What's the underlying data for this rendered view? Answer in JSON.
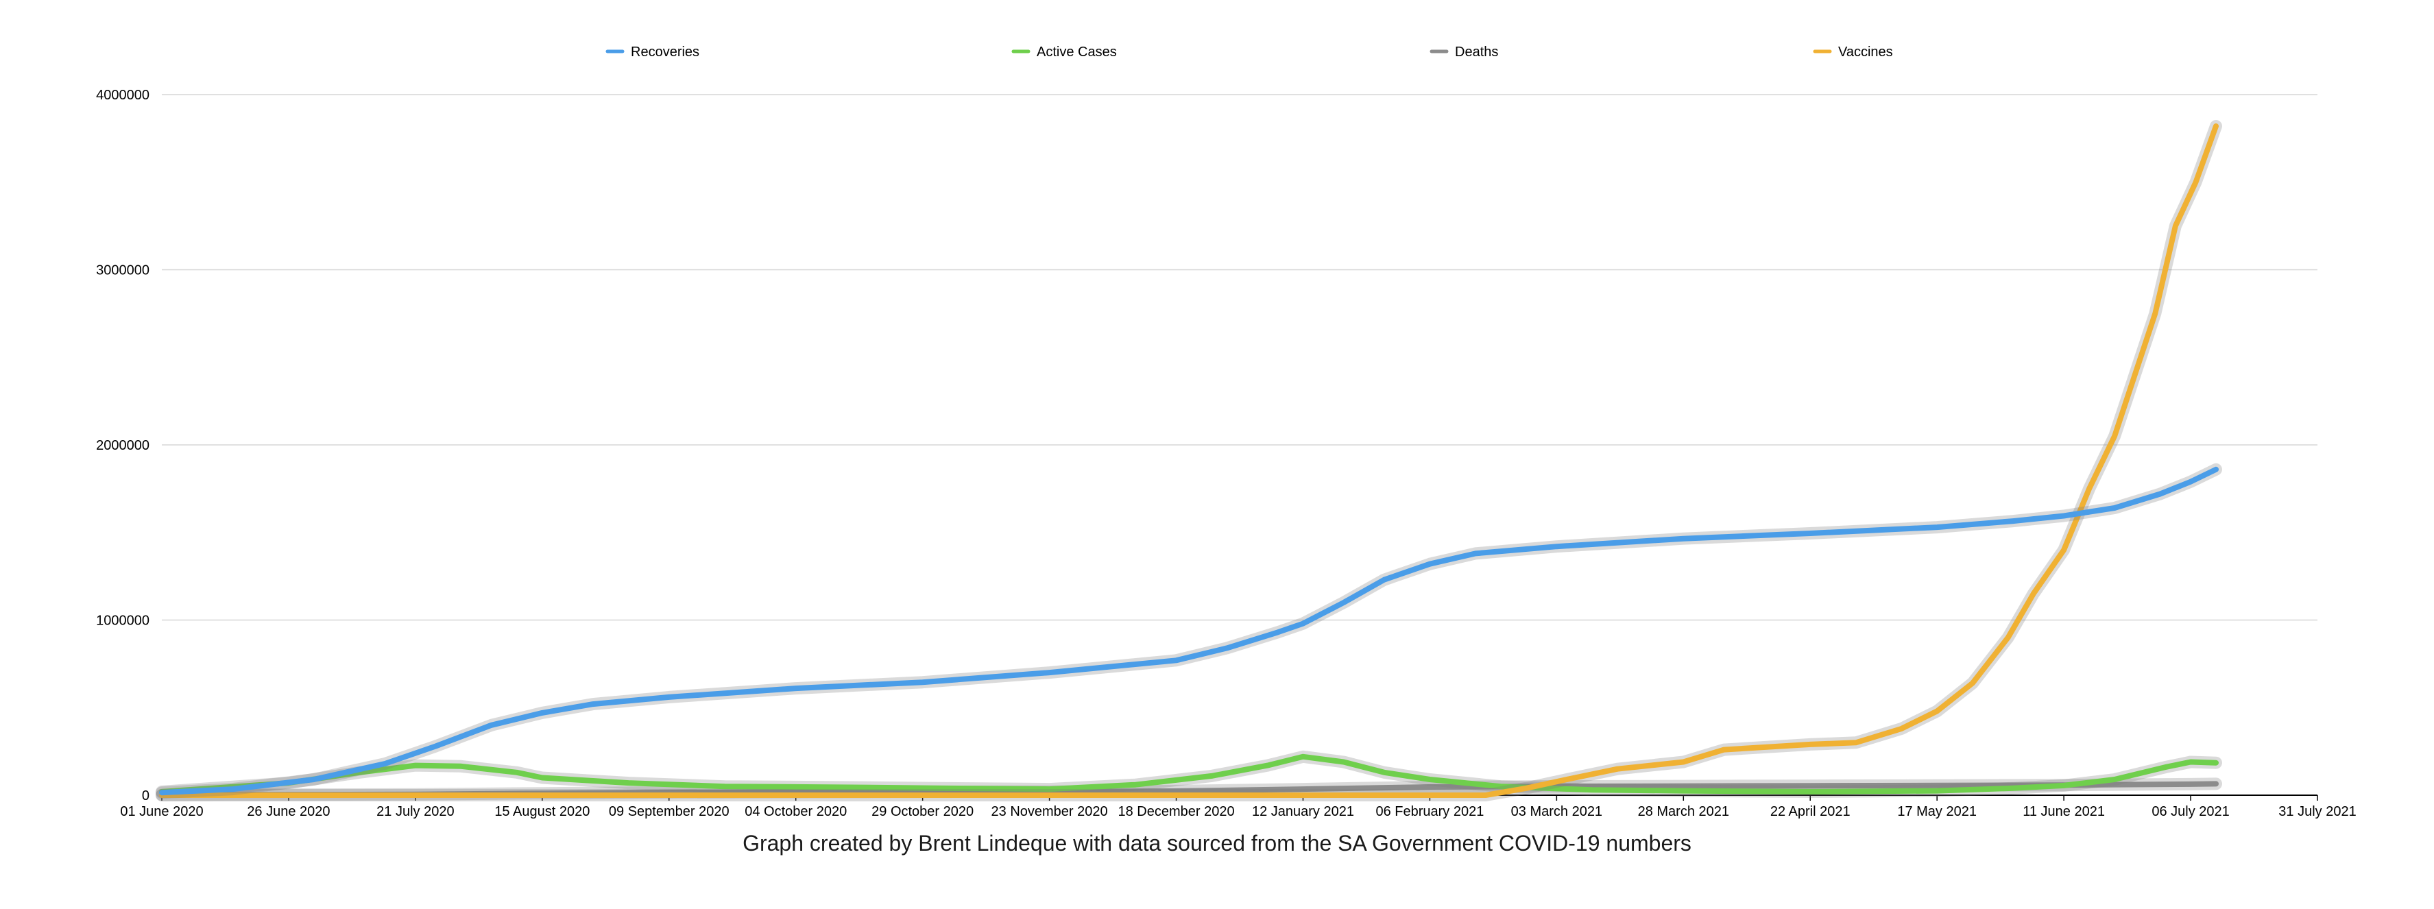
{
  "caption": "Graph created by Brent Lindeque with data sourced from the SA Government COVID-19 numbers",
  "chart_data": {
    "type": "line",
    "title": "",
    "xlabel": "",
    "ylabel": "",
    "ylim": [
      0,
      4000000
    ],
    "xlim": [
      "2020-06-01",
      "2021-07-31"
    ],
    "grid": true,
    "legend_position": "top",
    "y_ticks": [
      "0",
      "1000000",
      "2000000",
      "3000000",
      "4000000"
    ],
    "x_ticks": [
      "01 June 2020",
      "26 June 2020",
      "21 July 2020",
      "15 August 2020",
      "09 September 2020",
      "04 October 2020",
      "29 October 2020",
      "23 November 2020",
      "18 December 2020",
      "12 January 2021",
      "06 February 2021",
      "03 March 2021",
      "28 March 2021",
      "22 April 2021",
      "17 May 2021",
      "11 June 2021",
      "06 July 2021",
      "31 July 2021"
    ],
    "series": [
      {
        "name": "Recoveries",
        "color": "#4a9de8",
        "points": [
          [
            "2020-06-01",
            15000
          ],
          [
            "2020-06-15",
            35000
          ],
          [
            "2020-07-01",
            90000
          ],
          [
            "2020-07-15",
            180000
          ],
          [
            "2020-07-25",
            280000
          ],
          [
            "2020-08-05",
            400000
          ],
          [
            "2020-08-15",
            470000
          ],
          [
            "2020-08-25",
            520000
          ],
          [
            "2020-09-09",
            560000
          ],
          [
            "2020-10-04",
            610000
          ],
          [
            "2020-10-29",
            645000
          ],
          [
            "2020-11-23",
            700000
          ],
          [
            "2020-12-18",
            770000
          ],
          [
            "2020-12-28",
            840000
          ],
          [
            "2021-01-07",
            930000
          ],
          [
            "2021-01-12",
            980000
          ],
          [
            "2021-01-20",
            1100000
          ],
          [
            "2021-01-28",
            1230000
          ],
          [
            "2021-02-06",
            1320000
          ],
          [
            "2021-02-15",
            1380000
          ],
          [
            "2021-03-03",
            1420000
          ],
          [
            "2021-03-28",
            1465000
          ],
          [
            "2021-04-22",
            1495000
          ],
          [
            "2021-05-17",
            1530000
          ],
          [
            "2021-06-01",
            1565000
          ],
          [
            "2021-06-11",
            1595000
          ],
          [
            "2021-06-21",
            1640000
          ],
          [
            "2021-06-30",
            1720000
          ],
          [
            "2021-07-06",
            1790000
          ],
          [
            "2021-07-11",
            1860000
          ]
        ]
      },
      {
        "name": "Active Cases",
        "color": "#6fcf4c",
        "points": [
          [
            "2020-06-01",
            20000
          ],
          [
            "2020-06-26",
            70000
          ],
          [
            "2020-07-10",
            130000
          ],
          [
            "2020-07-21",
            170000
          ],
          [
            "2020-07-30",
            165000
          ],
          [
            "2020-08-10",
            130000
          ],
          [
            "2020-08-15",
            100000
          ],
          [
            "2020-09-01",
            70000
          ],
          [
            "2020-09-20",
            50000
          ],
          [
            "2020-10-15",
            45000
          ],
          [
            "2020-11-01",
            40000
          ],
          [
            "2020-11-23",
            35000
          ],
          [
            "2020-12-10",
            60000
          ],
          [
            "2020-12-25",
            110000
          ],
          [
            "2021-01-05",
            170000
          ],
          [
            "2021-01-12",
            220000
          ],
          [
            "2021-01-20",
            190000
          ],
          [
            "2021-01-28",
            130000
          ],
          [
            "2021-02-06",
            90000
          ],
          [
            "2021-02-20",
            50000
          ],
          [
            "2021-03-10",
            30000
          ],
          [
            "2021-03-28",
            25000
          ],
          [
            "2021-04-22",
            20000
          ],
          [
            "2021-05-17",
            25000
          ],
          [
            "2021-06-01",
            40000
          ],
          [
            "2021-06-11",
            55000
          ],
          [
            "2021-06-21",
            90000
          ],
          [
            "2021-07-01",
            160000
          ],
          [
            "2021-07-06",
            190000
          ],
          [
            "2021-07-11",
            185000
          ]
        ]
      },
      {
        "name": "Deaths",
        "color": "#8c8c8c",
        "points": [
          [
            "2020-06-01",
            1000
          ],
          [
            "2020-07-21",
            5000
          ],
          [
            "2020-08-15",
            11000
          ],
          [
            "2020-09-09",
            16000
          ],
          [
            "2020-10-04",
            17500
          ],
          [
            "2020-11-23",
            20500
          ],
          [
            "2020-12-18",
            24000
          ],
          [
            "2021-01-12",
            35000
          ],
          [
            "2021-02-06",
            47000
          ],
          [
            "2021-03-03",
            51000
          ],
          [
            "2021-04-22",
            54000
          ],
          [
            "2021-05-17",
            55500
          ],
          [
            "2021-06-11",
            58000
          ],
          [
            "2021-07-06",
            63000
          ],
          [
            "2021-07-11",
            65000
          ]
        ]
      },
      {
        "name": "Vaccines",
        "color": "#f0b133",
        "points": [
          [
            "2020-06-01",
            0
          ],
          [
            "2021-02-17",
            0
          ],
          [
            "2021-02-25",
            40000
          ],
          [
            "2021-03-05",
            90000
          ],
          [
            "2021-03-15",
            150000
          ],
          [
            "2021-03-28",
            190000
          ],
          [
            "2021-04-05",
            260000
          ],
          [
            "2021-04-22",
            290000
          ],
          [
            "2021-05-01",
            300000
          ],
          [
            "2021-05-10",
            380000
          ],
          [
            "2021-05-17",
            480000
          ],
          [
            "2021-05-24",
            640000
          ],
          [
            "2021-05-31",
            900000
          ],
          [
            "2021-06-05",
            1150000
          ],
          [
            "2021-06-11",
            1400000
          ],
          [
            "2021-06-16",
            1750000
          ],
          [
            "2021-06-21",
            2050000
          ],
          [
            "2021-06-25",
            2400000
          ],
          [
            "2021-06-29",
            2750000
          ],
          [
            "2021-07-03",
            3250000
          ],
          [
            "2021-07-07",
            3500000
          ],
          [
            "2021-07-11",
            3820000
          ]
        ]
      }
    ]
  }
}
